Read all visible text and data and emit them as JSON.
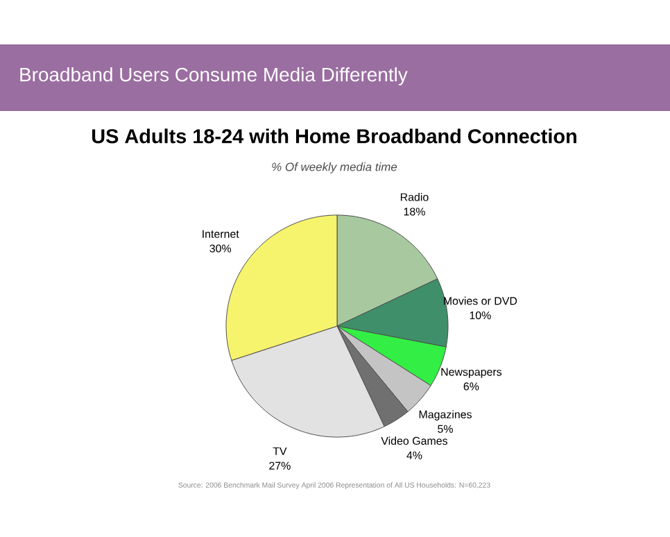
{
  "chart_data": {
    "type": "pie",
    "title": "US Adults 18-24 with Home Broadband Connection",
    "subtitle": "% Of weekly media time",
    "categories": [
      "Radio",
      "Movies or DVD",
      "Newspapers",
      "Magazines",
      "Video Games",
      "TV",
      "Internet"
    ],
    "values": [
      18,
      10,
      6,
      5,
      4,
      27,
      30
    ],
    "value_labels": [
      "18%",
      "10%",
      "6%",
      "5%",
      "4%",
      "27%",
      "30%"
    ],
    "colors": [
      "#a8c8a0",
      "#3f8f6a",
      "#33ee44",
      "#c4c4c4",
      "#707070",
      "#e2e2e2",
      "#f6f46c"
    ],
    "annotations": [
      "Broadband Users Consume Media Differently",
      "Source: 2006 Benchmark Mail Survey April 2006 Representation of All US Households: N=60,223"
    ]
  }
}
